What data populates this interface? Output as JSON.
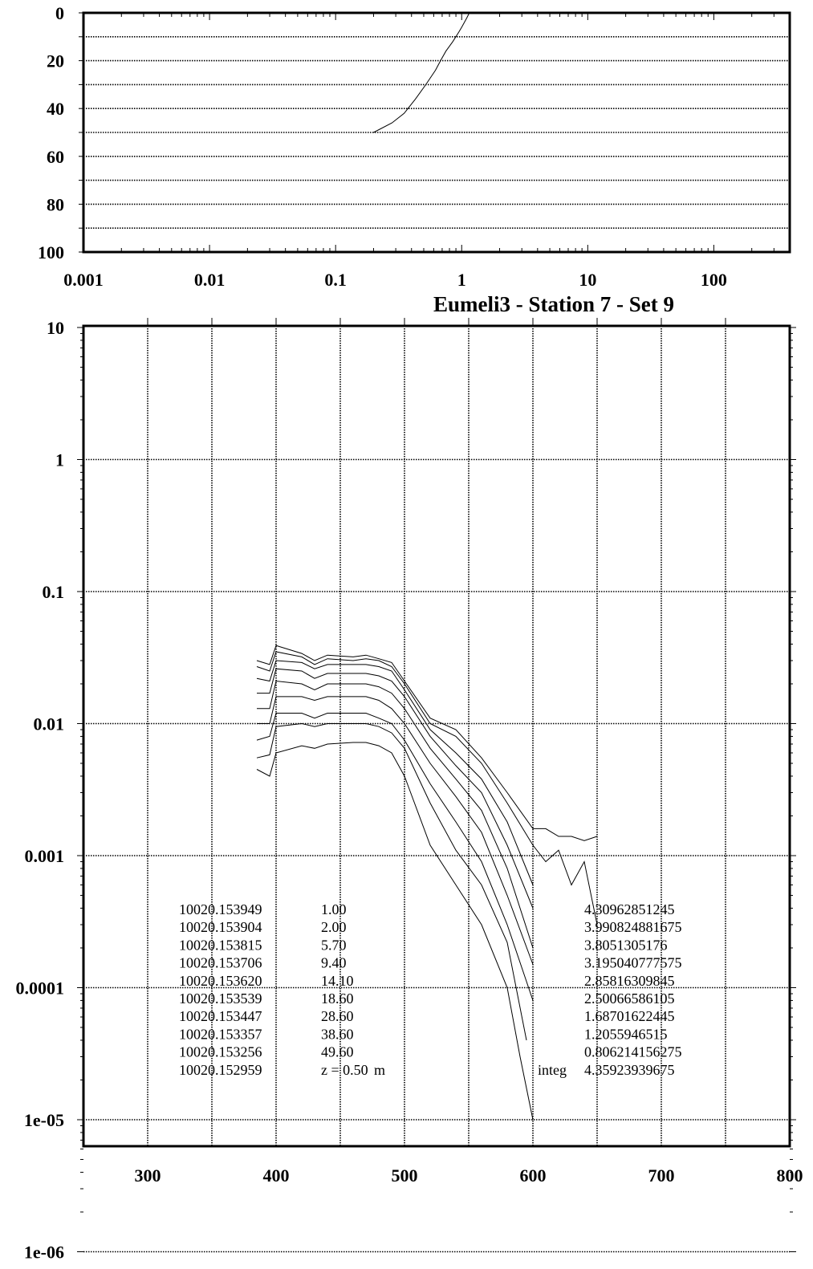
{
  "chart_data": [
    {
      "type": "line",
      "x_scale": "log",
      "y_inverted": true,
      "xlim": [
        0.001,
        400
      ],
      "ylim": [
        0,
        100
      ],
      "x_ticks": [
        "0.001",
        "0.01",
        "0.1",
        "1",
        "10",
        "100"
      ],
      "y_ticks": [
        "0",
        "20",
        "40",
        "60",
        "80",
        "100"
      ],
      "grid": "horizontal dotted",
      "series": [
        {
          "x": [
            1.15,
            1.1,
            1.05,
            1.0,
            0.95,
            0.85,
            0.75,
            0.68,
            0.62,
            0.52,
            0.43,
            0.35,
            0.28,
            0.2
          ],
          "y": [
            0,
            2,
            4,
            6,
            8,
            12,
            16,
            20,
            24,
            30,
            36,
            42,
            46,
            50
          ]
        }
      ]
    },
    {
      "type": "line",
      "title": "Eumeli3 - Station 7 - Set 9",
      "y_scale": "log",
      "xlim": [
        250,
        800
      ],
      "ylim": [
        1e-06,
        10
      ],
      "x_ticks": [
        "300",
        "400",
        "500",
        "600",
        "700",
        "800"
      ],
      "y_ticks": [
        "10",
        "1",
        "0.1",
        "0.01",
        "0.001",
        "0.0001",
        "1e-05",
        "1e-06"
      ],
      "grid": "dotted",
      "series": [
        {
          "x": [
            385,
            395,
            400,
            420,
            430,
            440,
            460,
            470,
            480,
            490,
            500,
            520,
            540,
            560,
            580,
            600,
            610,
            620,
            630,
            640,
            650
          ],
          "y": [
            0.03,
            0.028,
            0.039,
            0.034,
            0.03,
            0.033,
            0.032,
            0.033,
            0.031,
            0.029,
            0.021,
            0.011,
            0.009,
            0.0055,
            0.003,
            0.0016,
            0.0016,
            0.0014,
            0.0014,
            0.0013,
            0.0014
          ]
        },
        {
          "x": [
            385,
            395,
            400,
            420,
            430,
            440,
            460,
            470,
            480,
            490,
            500,
            520,
            540,
            560,
            580,
            600,
            610,
            620,
            630,
            640,
            650
          ],
          "y": [
            0.027,
            0.025,
            0.035,
            0.032,
            0.028,
            0.031,
            0.03,
            0.031,
            0.03,
            0.027,
            0.02,
            0.01,
            0.008,
            0.005,
            0.0025,
            0.0012,
            0.0009,
            0.0011,
            0.0006,
            0.0009,
            0.0003
          ]
        },
        {
          "x": [
            385,
            395,
            400,
            420,
            430,
            440,
            460,
            470,
            480,
            490,
            500,
            520,
            540,
            560,
            580,
            600
          ],
          "y": [
            0.022,
            0.021,
            0.03,
            0.029,
            0.026,
            0.028,
            0.028,
            0.028,
            0.027,
            0.025,
            0.018,
            0.009,
            0.006,
            0.0038,
            0.0018,
            0.0006
          ]
        },
        {
          "x": [
            385,
            395,
            400,
            420,
            430,
            440,
            460,
            470,
            480,
            490,
            500,
            520,
            540,
            560,
            580,
            600
          ],
          "y": [
            0.017,
            0.017,
            0.026,
            0.025,
            0.022,
            0.024,
            0.024,
            0.024,
            0.023,
            0.021,
            0.016,
            0.008,
            0.0048,
            0.003,
            0.0012,
            0.0004
          ]
        },
        {
          "x": [
            385,
            395,
            400,
            420,
            430,
            440,
            460,
            470,
            480,
            490,
            500,
            520,
            540,
            560,
            580,
            600
          ],
          "y": [
            0.013,
            0.013,
            0.021,
            0.02,
            0.018,
            0.02,
            0.02,
            0.02,
            0.019,
            0.017,
            0.013,
            0.0065,
            0.0038,
            0.0022,
            0.0008,
            0.0002
          ]
        },
        {
          "x": [
            385,
            395,
            400,
            420,
            430,
            440,
            460,
            470,
            480,
            490,
            500,
            520,
            540,
            560,
            580,
            600
          ],
          "y": [
            0.01,
            0.01,
            0.016,
            0.016,
            0.015,
            0.016,
            0.016,
            0.016,
            0.015,
            0.013,
            0.01,
            0.005,
            0.0028,
            0.0015,
            0.0005,
            0.00015
          ]
        },
        {
          "x": [
            385,
            395,
            400,
            420,
            430,
            440,
            460,
            470,
            480,
            490,
            500,
            520,
            540,
            560,
            580,
            600
          ],
          "y": [
            0.0075,
            0.008,
            0.012,
            0.012,
            0.011,
            0.012,
            0.012,
            0.012,
            0.011,
            0.01,
            0.0075,
            0.0035,
            0.0018,
            0.0009,
            0.0003,
            8e-05
          ]
        },
        {
          "x": [
            385,
            395,
            400,
            420,
            430,
            440,
            460,
            470,
            480,
            490,
            500,
            520,
            540,
            560,
            580,
            595
          ],
          "y": [
            0.0055,
            0.0058,
            0.0095,
            0.01,
            0.0095,
            0.01,
            0.01,
            0.01,
            0.0095,
            0.0085,
            0.0065,
            0.0025,
            0.0011,
            0.0006,
            0.00022,
            4e-05
          ]
        },
        {
          "x": [
            385,
            395,
            400,
            420,
            430,
            440,
            460,
            470,
            480,
            490,
            500,
            520,
            540,
            560,
            580,
            590,
            600
          ],
          "y": [
            0.0045,
            0.004,
            0.006,
            0.0068,
            0.0065,
            0.007,
            0.0072,
            0.0072,
            0.0068,
            0.006,
            0.004,
            0.0012,
            0.0006,
            0.0003,
            0.0001,
            3e-05,
            1e-05
          ]
        }
      ],
      "table": {
        "rows": [
          {
            "id": "10020.153949",
            "depth": "1.00",
            "integ_label": "",
            "value": "4.30962851245"
          },
          {
            "id": "10020.153904",
            "depth": "2.00",
            "integ_label": "",
            "value": "3.990824881675"
          },
          {
            "id": "10020.153815",
            "depth": "5.70",
            "integ_label": "",
            "value": "3.8051305176"
          },
          {
            "id": "10020.153706",
            "depth": "9.40",
            "integ_label": "",
            "value": "3.195040777575"
          },
          {
            "id": "10020.153620",
            "depth": "14.10",
            "integ_label": "",
            "value": "2.85816309845"
          },
          {
            "id": "10020.153539",
            "depth": "18.60",
            "integ_label": "",
            "value": "2.50066586105"
          },
          {
            "id": "10020.153447",
            "depth": "28.60",
            "integ_label": "",
            "value": "1.68701622445"
          },
          {
            "id": "10020.153357",
            "depth": "38.60",
            "integ_label": "",
            "value": "1.2055946515"
          },
          {
            "id": "10020.153256",
            "depth": "49.60",
            "integ_label": "",
            "value": "0.806214156275"
          },
          {
            "id": "10020.152959",
            "depth": "z = 0.50",
            "unit": "m",
            "integ_label": "integ",
            "value": "4.35923939675"
          }
        ]
      }
    }
  ]
}
